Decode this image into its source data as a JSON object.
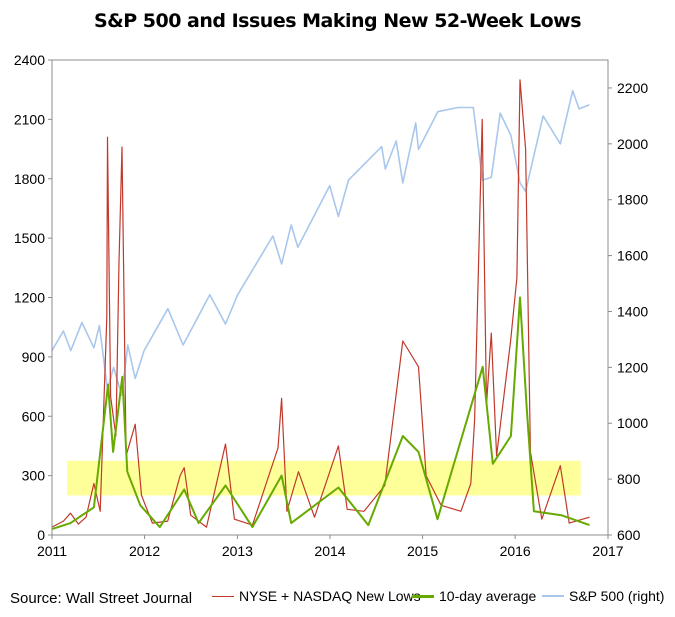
{
  "chart_data": {
    "type": "line",
    "title": "S&P 500 and Issues Making New 52-Week Lows",
    "source": "Source: Wall Street Journal",
    "x_ticks": [
      "2011",
      "2012",
      "2013",
      "2014",
      "2015",
      "2016",
      "2017"
    ],
    "x_range": [
      "2011-01-01",
      "2017-01-01"
    ],
    "y_left": {
      "range": [
        0,
        2400
      ],
      "ticks": [
        "0",
        "300",
        "600",
        "900",
        "1200",
        "1500",
        "1800",
        "2100",
        "2400"
      ]
    },
    "y_right": {
      "range": [
        600,
        2300
      ],
      "ticks": [
        "600",
        "800",
        "1000",
        "1200",
        "1400",
        "1600",
        "1800",
        "2000",
        "2200"
      ]
    },
    "highlight_band": {
      "axis": "left",
      "from": 200,
      "to": 375,
      "x_from": "2011-03-01",
      "x_to": "2016-09-15",
      "color": "#ffff99"
    },
    "legend_position": "bottom",
    "series": [
      {
        "name": "NYSE + NASDAQ New Lows",
        "axis": "left",
        "color": "#c0392b",
        "points": [
          [
            "2011-01-01",
            40
          ],
          [
            "2011-02-15",
            70
          ],
          [
            "2011-03-15",
            110
          ],
          [
            "2011-04-15",
            55
          ],
          [
            "2011-05-15",
            90
          ],
          [
            "2011-06-15",
            260
          ],
          [
            "2011-07-10",
            120
          ],
          [
            "2011-08-05",
            1100
          ],
          [
            "2011-08-08",
            2010
          ],
          [
            "2011-08-20",
            700
          ],
          [
            "2011-09-10",
            500
          ],
          [
            "2011-09-22",
            1380
          ],
          [
            "2011-10-04",
            1960
          ],
          [
            "2011-10-20",
            400
          ],
          [
            "2011-11-25",
            560
          ],
          [
            "2011-12-20",
            200
          ],
          [
            "2012-02-01",
            60
          ],
          [
            "2012-04-01",
            70
          ],
          [
            "2012-05-20",
            300
          ],
          [
            "2012-06-05",
            340
          ],
          [
            "2012-07-01",
            100
          ],
          [
            "2012-09-01",
            40
          ],
          [
            "2012-11-15",
            460
          ],
          [
            "2012-12-20",
            80
          ],
          [
            "2013-03-01",
            50
          ],
          [
            "2013-06-10",
            440
          ],
          [
            "2013-06-24",
            690
          ],
          [
            "2013-07-15",
            120
          ],
          [
            "2013-08-30",
            320
          ],
          [
            "2013-11-01",
            90
          ],
          [
            "2014-02-03",
            450
          ],
          [
            "2014-03-10",
            130
          ],
          [
            "2014-05-15",
            120
          ],
          [
            "2014-08-05",
            250
          ],
          [
            "2014-10-15",
            980
          ],
          [
            "2014-12-16",
            850
          ],
          [
            "2015-01-15",
            300
          ],
          [
            "2015-03-15",
            150
          ],
          [
            "2015-06-01",
            120
          ],
          [
            "2015-07-10",
            260
          ],
          [
            "2015-07-25",
            580
          ],
          [
            "2015-08-24",
            2100
          ],
          [
            "2015-09-10",
            660
          ],
          [
            "2015-09-29",
            1020
          ],
          [
            "2015-10-20",
            400
          ],
          [
            "2015-12-14",
            980
          ],
          [
            "2016-01-08",
            1300
          ],
          [
            "2016-01-20",
            2300
          ],
          [
            "2016-02-11",
            1950
          ],
          [
            "2016-03-01",
            420
          ],
          [
            "2016-04-15",
            80
          ],
          [
            "2016-06-27",
            350
          ],
          [
            "2016-08-01",
            60
          ],
          [
            "2016-10-20",
            90
          ]
        ]
      },
      {
        "name": "10-day average",
        "axis": "left",
        "color": "#66aa00",
        "points": [
          [
            "2011-01-01",
            30
          ],
          [
            "2011-03-15",
            60
          ],
          [
            "2011-06-15",
            140
          ],
          [
            "2011-08-10",
            760
          ],
          [
            "2011-08-30",
            420
          ],
          [
            "2011-10-05",
            800
          ],
          [
            "2011-10-25",
            320
          ],
          [
            "2011-12-15",
            150
          ],
          [
            "2012-03-01",
            40
          ],
          [
            "2012-06-05",
            230
          ],
          [
            "2012-08-01",
            60
          ],
          [
            "2012-11-15",
            250
          ],
          [
            "2013-03-01",
            40
          ],
          [
            "2013-06-24",
            300
          ],
          [
            "2013-08-01",
            60
          ],
          [
            "2014-02-03",
            240
          ],
          [
            "2014-06-01",
            50
          ],
          [
            "2014-10-15",
            500
          ],
          [
            "2014-12-16",
            420
          ],
          [
            "2015-03-01",
            80
          ],
          [
            "2015-08-26",
            850
          ],
          [
            "2015-10-05",
            360
          ],
          [
            "2015-12-15",
            500
          ],
          [
            "2016-01-20",
            1200
          ],
          [
            "2016-02-15",
            650
          ],
          [
            "2016-03-15",
            120
          ],
          [
            "2016-07-01",
            100
          ],
          [
            "2016-10-20",
            50
          ]
        ]
      },
      {
        "name": "S&P 500 (right)",
        "axis": "right",
        "color": "#a9c7ec",
        "points": [
          [
            "2011-01-01",
            1260
          ],
          [
            "2011-02-15",
            1330
          ],
          [
            "2011-03-16",
            1260
          ],
          [
            "2011-04-29",
            1360
          ],
          [
            "2011-06-15",
            1270
          ],
          [
            "2011-07-07",
            1350
          ],
          [
            "2011-08-08",
            1120
          ],
          [
            "2011-09-01",
            1200
          ],
          [
            "2011-10-03",
            1100
          ],
          [
            "2011-10-27",
            1280
          ],
          [
            "2011-11-25",
            1160
          ],
          [
            "2011-12-30",
            1260
          ],
          [
            "2012-04-02",
            1410
          ],
          [
            "2012-06-01",
            1280
          ],
          [
            "2012-09-14",
            1460
          ],
          [
            "2012-11-15",
            1355
          ],
          [
            "2013-01-02",
            1460
          ],
          [
            "2013-05-21",
            1670
          ],
          [
            "2013-06-24",
            1570
          ],
          [
            "2013-08-01",
            1710
          ],
          [
            "2013-08-27",
            1630
          ],
          [
            "2013-12-31",
            1850
          ],
          [
            "2014-02-03",
            1740
          ],
          [
            "2014-03-15",
            1870
          ],
          [
            "2014-07-24",
            1990
          ],
          [
            "2014-08-07",
            1910
          ],
          [
            "2014-09-19",
            2010
          ],
          [
            "2014-10-15",
            1860
          ],
          [
            "2014-12-05",
            2075
          ],
          [
            "2014-12-16",
            1980
          ],
          [
            "2015-03-02",
            2115
          ],
          [
            "2015-05-20",
            2130
          ],
          [
            "2015-07-20",
            2130
          ],
          [
            "2015-08-25",
            1870
          ],
          [
            "2015-09-29",
            1880
          ],
          [
            "2015-11-03",
            2110
          ],
          [
            "2015-12-15",
            2030
          ],
          [
            "2016-01-20",
            1860
          ],
          [
            "2016-02-11",
            1830
          ],
          [
            "2016-04-20",
            2100
          ],
          [
            "2016-06-27",
            2000
          ],
          [
            "2016-08-15",
            2190
          ],
          [
            "2016-09-09",
            2125
          ],
          [
            "2016-10-20",
            2140
          ]
        ]
      }
    ]
  }
}
